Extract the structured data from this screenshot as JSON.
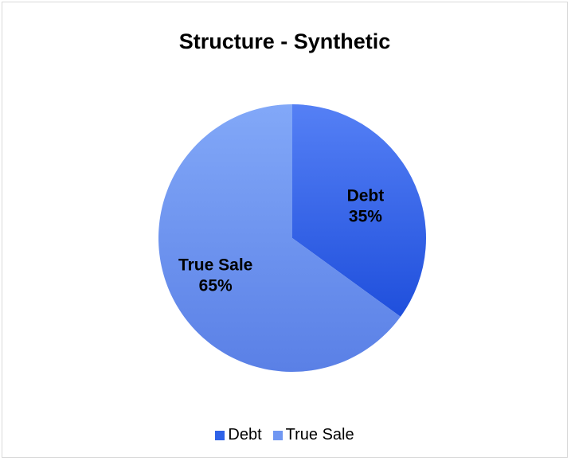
{
  "chart_data": {
    "type": "pie",
    "title": "Structure - Synthetic",
    "slices": [
      {
        "label": "Debt",
        "value": 35,
        "value_label": "35%",
        "color": "#2f62e8"
      },
      {
        "label": "True Sale",
        "value": 65,
        "value_label": "65%",
        "color": "#7097f2"
      }
    ],
    "start_angle_deg": 0,
    "direction": "clockwise",
    "legend": {
      "placement": "bottom",
      "entries": [
        "Debt",
        "True Sale"
      ]
    }
  }
}
